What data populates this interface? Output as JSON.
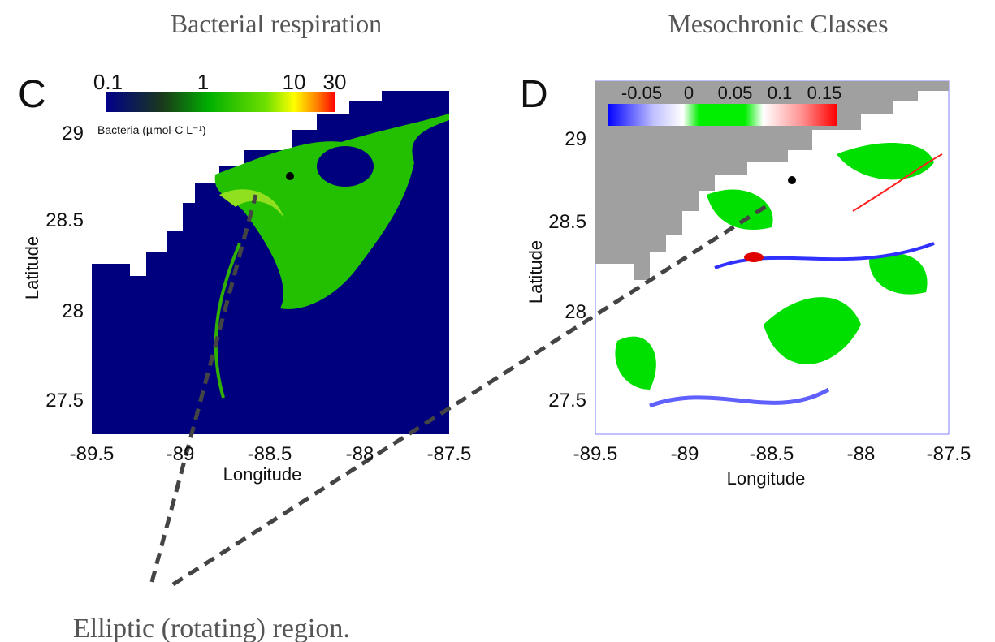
{
  "panels": [
    {
      "title": "Bacterial respiration",
      "letter": "C",
      "colorbar": {
        "ticks": [
          "0.1",
          "1",
          "10",
          "30"
        ],
        "caption": "Bacteria (µmol-C L⁻¹)"
      },
      "x_ticks": [
        "-89.5",
        "-89",
        "-88.5",
        "-88",
        "-87.5"
      ],
      "y_ticks": [
        "29",
        "28.5",
        "28",
        "27.5"
      ],
      "x_label": "Longitude",
      "y_label": "Latitude"
    },
    {
      "title": "Mesochronic Classes",
      "letter": "D",
      "colorbar": {
        "ticks": [
          "-0.05",
          "0",
          "0.05",
          "0.1",
          "0.15"
        ]
      },
      "x_ticks": [
        "-89.5",
        "-89",
        "-88.5",
        "-88",
        "-87.5"
      ],
      "y_ticks": [
        "29",
        "28.5",
        "28",
        "27.5"
      ],
      "x_label": "Longitude",
      "y_label": "Latitude"
    }
  ],
  "annotation": "Elliptic (rotating) region."
}
